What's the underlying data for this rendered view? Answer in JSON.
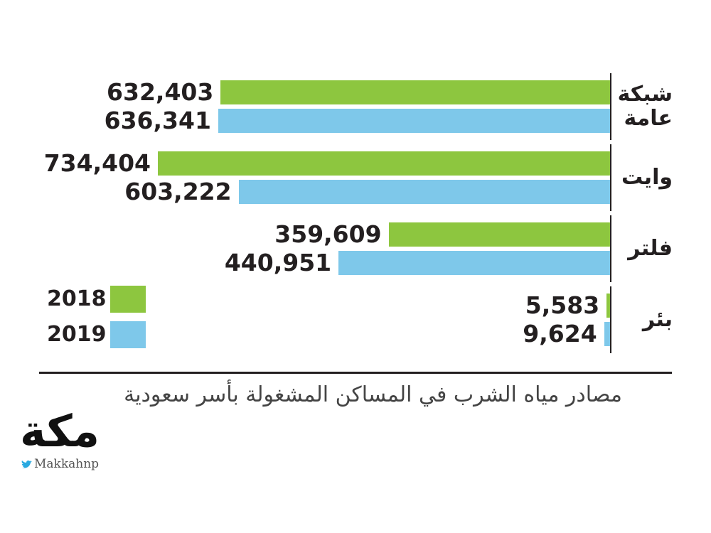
{
  "chart_data": {
    "type": "bar",
    "orientation": "horizontal",
    "direction": "rtl",
    "title": "مصادر مياه الشرب في المساكن المشغولة بأسر سعودية",
    "categories": [
      "شبكة عامة",
      "وايت",
      "فلتر",
      "بئر"
    ],
    "series": [
      {
        "name": "2018",
        "color": "#8dc63f",
        "values": [
          632403,
          734404,
          359609,
          5583
        ],
        "value_labels": [
          "632,403",
          "734,404",
          "359,609",
          "5,583"
        ]
      },
      {
        "name": "2019",
        "color": "#7ec8ea",
        "values": [
          636341,
          603222,
          440951,
          9624
        ],
        "value_labels": [
          "636,341",
          "603,222",
          "440,951",
          "9,624"
        ]
      }
    ],
    "legend": "bottom-left"
  },
  "branding": {
    "logo": "مكة",
    "handle": "Makkahnp"
  }
}
